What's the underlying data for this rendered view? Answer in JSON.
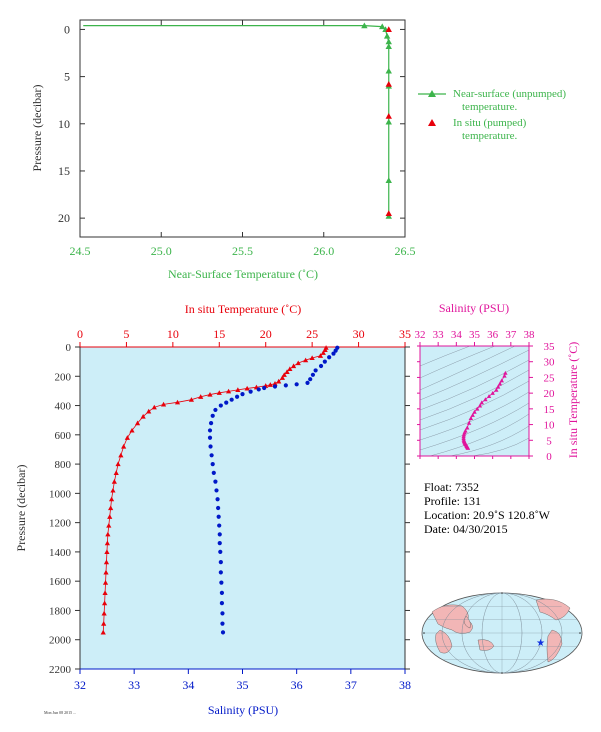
{
  "colors": {
    "green": "#3cb44b",
    "red": "#e8000b",
    "blue": "#0018c8",
    "magenta": "#e0149b",
    "panel_bg": "#cdeef8",
    "axis_dark": "#333333"
  },
  "chart_data": [
    {
      "id": "near-surface",
      "type": "line",
      "xlabel": "Near-Surface Temperature (˚C)",
      "ylabel": "Pressure (decibar)",
      "xlim": [
        24.5,
        26.5
      ],
      "ylim": [
        22,
        -1
      ],
      "xticks": [
        "24.5",
        "25.0",
        "25.5",
        "26.0",
        "26.5"
      ],
      "yticks": [
        "0",
        "5",
        "10",
        "15",
        "20"
      ],
      "legend_position": "right",
      "series": [
        {
          "name": "Near-surface (unpumped) temperature.",
          "marker": "triangle",
          "line": true,
          "points": [
            [
              24.52,
              -0.4
            ],
            [
              26.25,
              -0.4
            ],
            [
              26.36,
              -0.3
            ],
            [
              26.38,
              0.0
            ],
            [
              26.39,
              0.7
            ],
            [
              26.4,
              1.3
            ],
            [
              26.4,
              1.8
            ],
            [
              26.4,
              4.4
            ],
            [
              26.4,
              6.0
            ],
            [
              26.4,
              9.8
            ],
            [
              26.4,
              16.0
            ],
            [
              26.4,
              19.8
            ]
          ]
        },
        {
          "name": "In situ (pumped) temperature.",
          "marker": "triangle",
          "line": false,
          "points": [
            [
              26.4,
              0.0
            ],
            [
              26.4,
              5.8
            ],
            [
              26.4,
              9.2
            ],
            [
              26.4,
              19.5
            ]
          ]
        }
      ]
    },
    {
      "id": "profile",
      "type": "line",
      "xlabel_top": "In situ Temperature (˚C)",
      "xlabel_bottom": "Salinity (PSU)",
      "ylabel": "Pressure (decibar)",
      "temp_lim": [
        0,
        35
      ],
      "sal_lim": [
        32,
        38
      ],
      "ylim": [
        2200,
        0
      ],
      "temp_ticks": [
        "0",
        "5",
        "10",
        "15",
        "20",
        "25",
        "30",
        "35"
      ],
      "sal_ticks": [
        "32",
        "33",
        "34",
        "35",
        "36",
        "37",
        "38"
      ],
      "yticks": [
        "0",
        "200",
        "400",
        "600",
        "800",
        "1000",
        "1200",
        "1400",
        "1600",
        "1800",
        "2000",
        "2200"
      ],
      "temperature": [
        [
          26.5,
          5
        ],
        [
          26.4,
          20
        ],
        [
          26.2,
          40
        ],
        [
          25.9,
          60
        ],
        [
          25.0,
          75
        ],
        [
          24.3,
          90
        ],
        [
          23.5,
          110
        ],
        [
          23.0,
          130
        ],
        [
          22.6,
          150
        ],
        [
          22.3,
          170
        ],
        [
          22.0,
          190
        ],
        [
          21.8,
          210
        ],
        [
          21.4,
          235
        ],
        [
          21.0,
          250
        ],
        [
          20.5,
          258
        ],
        [
          20.0,
          265
        ],
        [
          19.0,
          275
        ],
        [
          18.0,
          283
        ],
        [
          17.0,
          293
        ],
        [
          16.0,
          303
        ],
        [
          15.0,
          313
        ],
        [
          14.0,
          325
        ],
        [
          13.0,
          340
        ],
        [
          12.0,
          360
        ],
        [
          10.5,
          378
        ],
        [
          9.0,
          392
        ],
        [
          8.0,
          412
        ],
        [
          7.4,
          440
        ],
        [
          6.8,
          475
        ],
        [
          6.2,
          520
        ],
        [
          5.6,
          570
        ],
        [
          5.1,
          620
        ],
        [
          4.7,
          680
        ],
        [
          4.4,
          740
        ],
        [
          4.1,
          800
        ],
        [
          3.9,
          860
        ],
        [
          3.7,
          920
        ],
        [
          3.55,
          980
        ],
        [
          3.4,
          1040
        ],
        [
          3.3,
          1100
        ],
        [
          3.2,
          1160
        ],
        [
          3.1,
          1220
        ],
        [
          3.0,
          1280
        ],
        [
          2.95,
          1340
        ],
        [
          2.9,
          1400
        ],
        [
          2.85,
          1470
        ],
        [
          2.8,
          1540
        ],
        [
          2.75,
          1610
        ],
        [
          2.7,
          1680
        ],
        [
          2.65,
          1750
        ],
        [
          2.6,
          1820
        ],
        [
          2.55,
          1890
        ],
        [
          2.5,
          1950
        ]
      ],
      "salinity": [
        [
          36.75,
          5
        ],
        [
          36.72,
          25
        ],
        [
          36.68,
          45
        ],
        [
          36.6,
          70
        ],
        [
          36.52,
          100
        ],
        [
          36.45,
          130
        ],
        [
          36.35,
          160
        ],
        [
          36.3,
          190
        ],
        [
          36.25,
          220
        ],
        [
          36.2,
          245
        ],
        [
          36.0,
          255
        ],
        [
          35.8,
          262
        ],
        [
          35.6,
          270
        ],
        [
          35.4,
          280
        ],
        [
          35.3,
          290
        ],
        [
          35.15,
          305
        ],
        [
          35.0,
          322
        ],
        [
          34.9,
          340
        ],
        [
          34.8,
          360
        ],
        [
          34.7,
          380
        ],
        [
          34.6,
          400
        ],
        [
          34.5,
          430
        ],
        [
          34.45,
          470
        ],
        [
          34.42,
          520
        ],
        [
          34.4,
          570
        ],
        [
          34.4,
          620
        ],
        [
          34.41,
          680
        ],
        [
          34.43,
          740
        ],
        [
          34.45,
          800
        ],
        [
          34.47,
          860
        ],
        [
          34.5,
          920
        ],
        [
          34.52,
          980
        ],
        [
          34.54,
          1040
        ],
        [
          34.55,
          1100
        ],
        [
          34.56,
          1160
        ],
        [
          34.57,
          1220
        ],
        [
          34.58,
          1280
        ],
        [
          34.58,
          1340
        ],
        [
          34.59,
          1400
        ],
        [
          34.6,
          1470
        ],
        [
          34.6,
          1540
        ],
        [
          34.61,
          1610
        ],
        [
          34.62,
          1680
        ],
        [
          34.62,
          1750
        ],
        [
          34.63,
          1820
        ],
        [
          34.63,
          1890
        ],
        [
          34.64,
          1950
        ]
      ]
    },
    {
      "id": "ts-diagram",
      "type": "scatter",
      "xlabel": "Salinity (PSU)",
      "ylabel": "In situ Temperature (˚C)",
      "xlim": [
        32,
        38
      ],
      "ylim": [
        0,
        35
      ],
      "xticks": [
        "32",
        "33",
        "34",
        "35",
        "36",
        "37",
        "38"
      ],
      "yticks": [
        "0",
        "5",
        "10",
        "15",
        "20",
        "25",
        "30",
        "35"
      ],
      "points": [
        [
          36.7,
          26.4
        ],
        [
          36.65,
          25.5
        ],
        [
          36.5,
          24.0
        ],
        [
          36.4,
          23.0
        ],
        [
          36.3,
          22.0
        ],
        [
          36.2,
          21.0
        ],
        [
          36.0,
          20.0
        ],
        [
          35.8,
          19.0
        ],
        [
          35.6,
          18.0
        ],
        [
          35.4,
          17.0
        ],
        [
          35.3,
          16.0
        ],
        [
          35.15,
          15.0
        ],
        [
          35.0,
          14.0
        ],
        [
          34.9,
          13.0
        ],
        [
          34.8,
          12.0
        ],
        [
          34.7,
          10.5
        ],
        [
          34.6,
          9.0
        ],
        [
          34.5,
          8.0
        ],
        [
          34.45,
          7.4
        ],
        [
          34.42,
          6.8
        ],
        [
          34.4,
          6.2
        ],
        [
          34.4,
          5.6
        ],
        [
          34.41,
          5.1
        ],
        [
          34.43,
          4.7
        ],
        [
          34.45,
          4.4
        ],
        [
          34.47,
          4.1
        ],
        [
          34.5,
          3.9
        ],
        [
          34.52,
          3.7
        ],
        [
          34.55,
          3.4
        ],
        [
          34.57,
          3.1
        ],
        [
          34.6,
          2.9
        ],
        [
          34.62,
          2.7
        ],
        [
          34.64,
          2.5
        ]
      ]
    }
  ],
  "info": {
    "float": "Float:  7352",
    "profile": "Profile:  131",
    "location": "Location:  20.9˚S  120.8˚W",
    "date": "Date:  04/30/2015"
  },
  "footer": {
    "stamp": "Mon Jun 08 2015 ..."
  },
  "map": {
    "marker_lat": -20.9,
    "marker_lon": -120.8
  }
}
